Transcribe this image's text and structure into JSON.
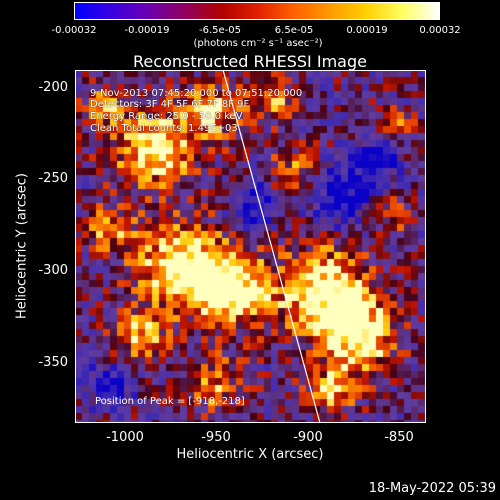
{
  "colorbar": {
    "colors": [
      "#0000ff",
      "#3a00e0",
      "#6a00b0",
      "#900060",
      "#b00000",
      "#e02000",
      "#ff6000",
      "#ff9a00",
      "#ffd000",
      "#ffff60",
      "#ffffff"
    ],
    "ticks": [
      "-0.00032",
      "-0.00019",
      "-6.5e-05",
      "6.5e-05",
      "0.00019",
      "0.00032"
    ],
    "units": "(photons cm⁻² s⁻¹ asec⁻²)"
  },
  "title": "Reconstructed RHESSI Image",
  "info": {
    "line1": "9-Nov-2013 07:45:20.000 to 07:51:20.000",
    "line2": "Detectors: 3F 4F 5F 6F 7F 8F 9F",
    "line3": "Energy Range: 25.0 - 50.0 keV",
    "line4": "Clean     Total counts: 1.49E+03"
  },
  "peak": "Position of Peak = [-918,-218]",
  "axes": {
    "xlabel": "Heliocentric X (arcsec)",
    "ylabel": "Heliocentric Y (arcsec)",
    "xticks": [
      "-1000",
      "-950",
      "-900",
      "-850"
    ],
    "yticks": [
      "-200",
      "-250",
      "-300",
      "-350"
    ],
    "xrange": [
      -1025,
      -835
    ],
    "yrange": [
      -383,
      -192
    ]
  },
  "timestamp": "18-May-2022 05:39"
}
